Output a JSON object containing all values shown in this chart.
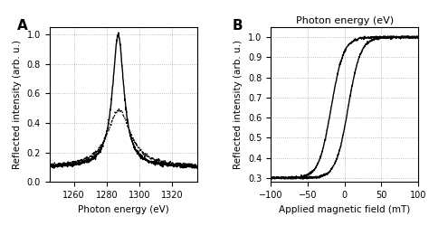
{
  "panel_A": {
    "label": "A",
    "xlabel": "Photon energy (eV)",
    "ylabel": "Reflected intensity (arb. u.)",
    "xlim": [
      1245,
      1335
    ],
    "ylim": [
      0.0,
      1.05
    ],
    "xticks": [
      1260,
      1280,
      1300,
      1320
    ],
    "yticks": [
      0.0,
      0.2,
      0.4,
      0.6,
      0.8,
      1.0
    ]
  },
  "panel_B": {
    "label": "B",
    "title": "Photon energy (eV)",
    "xlabel": "Applied magnetic field (mT)",
    "ylabel": "Reflected intensity (arb. u.)",
    "xlim": [
      -100,
      100
    ],
    "ylim": [
      0.28,
      1.05
    ],
    "xticks": [
      -100,
      -50,
      0,
      50,
      100
    ],
    "yticks": [
      0.3,
      0.4,
      0.5,
      0.6,
      0.7,
      0.8,
      0.9,
      1.0
    ]
  },
  "background_color": "#ffffff",
  "grid_color": "#aaaaaa",
  "line_color": "#000000"
}
